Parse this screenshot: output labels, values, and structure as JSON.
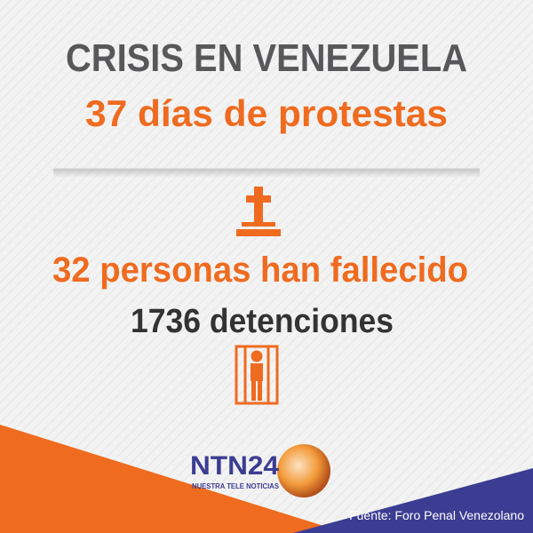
{
  "header": {
    "title": "CRISIS EN VENEZUELA",
    "subtitle": "37 días de protestas"
  },
  "stats": {
    "deaths": "32 personas han fallecido",
    "detentions": "1736 detenciones"
  },
  "logo": {
    "name": "NTN24",
    "tagline": "NUESTRA TELE NOTICIAS"
  },
  "footer": {
    "source": "Fuente: Foro Penal Venezolano"
  }
}
